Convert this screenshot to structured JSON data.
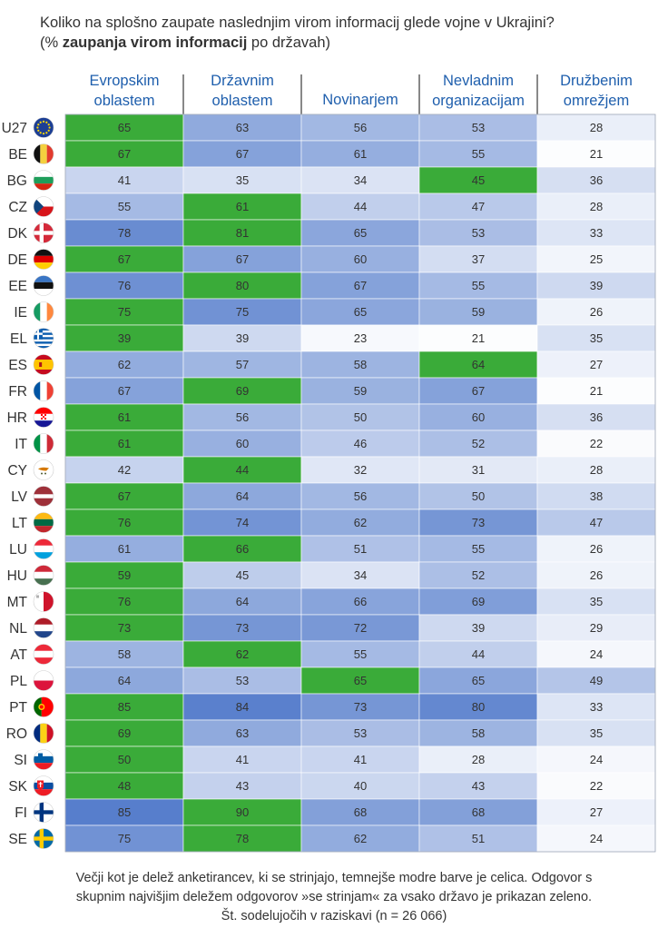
{
  "title": {
    "line1": "Koliko na splošno zaupate naslednjim virom informacij glede vojne v Ukrajini?",
    "line2_prefix": "(% ",
    "line2_bold": "zaupanja virom informacij",
    "line2_suffix": " po državah)"
  },
  "footer": {
    "line1": "Večji kot je delež anketirancev, ki se strinjajo, temnejše modre barve je celica. Odgovor s",
    "line2": "skupnim najvišjim deležem odgovorov »se strinjam« za vsako državo je prikazan zeleno.",
    "line3": "Št. sodelujočih v raziskavi (n = 26 066)"
  },
  "colors": {
    "highest": "#3aab39",
    "scale_light": "#ffffff",
    "scale_dark": "#4a74c8",
    "header_text": "#1f5fad"
  },
  "chart_data": {
    "type": "table",
    "title": "Koliko na splošno zaupate naslednjim virom informacij glede vojne v Ukrajini?",
    "columns": [
      [
        "Evropskim",
        "oblastem"
      ],
      [
        "Državnim",
        "oblastem"
      ],
      [
        "Novinarjem"
      ],
      [
        "Nevladnim",
        "organizacijam"
      ],
      [
        "Družbenim",
        "omrežjem"
      ]
    ],
    "rows": [
      {
        "code": "U27",
        "flag": "eu-flag-icon",
        "values": [
          65,
          63,
          56,
          53,
          28
        ],
        "highest": 0
      },
      {
        "code": "BE",
        "flag": "belgium-flag-icon",
        "values": [
          67,
          67,
          61,
          55,
          21
        ],
        "highest": 0
      },
      {
        "code": "BG",
        "flag": "bulgaria-flag-icon",
        "values": [
          41,
          35,
          34,
          45,
          36
        ],
        "highest": 3
      },
      {
        "code": "CZ",
        "flag": "czechia-flag-icon",
        "values": [
          55,
          61,
          44,
          47,
          28
        ],
        "highest": 1
      },
      {
        "code": "DK",
        "flag": "denmark-flag-icon",
        "values": [
          78,
          81,
          65,
          53,
          33
        ],
        "highest": 1
      },
      {
        "code": "DE",
        "flag": "germany-flag-icon",
        "values": [
          67,
          67,
          60,
          37,
          25
        ],
        "highest": 0
      },
      {
        "code": "EE",
        "flag": "estonia-flag-icon",
        "values": [
          76,
          80,
          67,
          55,
          39
        ],
        "highest": 1
      },
      {
        "code": "IE",
        "flag": "ireland-flag-icon",
        "values": [
          75,
          75,
          65,
          59,
          26
        ],
        "highest": 0
      },
      {
        "code": "EL",
        "flag": "greece-flag-icon",
        "values": [
          39,
          39,
          23,
          21,
          35
        ],
        "highest": 0
      },
      {
        "code": "ES",
        "flag": "spain-flag-icon",
        "values": [
          62,
          57,
          58,
          64,
          27
        ],
        "highest": 3
      },
      {
        "code": "FR",
        "flag": "france-flag-icon",
        "values": [
          67,
          69,
          59,
          67,
          21
        ],
        "highest": 1
      },
      {
        "code": "HR",
        "flag": "croatia-flag-icon",
        "values": [
          61,
          56,
          50,
          60,
          36
        ],
        "highest": 0
      },
      {
        "code": "IT",
        "flag": "italy-flag-icon",
        "values": [
          61,
          60,
          46,
          52,
          22
        ],
        "highest": 0
      },
      {
        "code": "CY",
        "flag": "cyprus-flag-icon",
        "values": [
          42,
          44,
          32,
          31,
          28
        ],
        "highest": 1
      },
      {
        "code": "LV",
        "flag": "latvia-flag-icon",
        "values": [
          67,
          64,
          56,
          50,
          38
        ],
        "highest": 0
      },
      {
        "code": "LT",
        "flag": "lithuania-flag-icon",
        "values": [
          76,
          74,
          62,
          73,
          47
        ],
        "highest": 0
      },
      {
        "code": "LU",
        "flag": "luxembourg-flag-icon",
        "values": [
          61,
          66,
          51,
          55,
          26
        ],
        "highest": 1
      },
      {
        "code": "HU",
        "flag": "hungary-flag-icon",
        "values": [
          59,
          45,
          34,
          52,
          26
        ],
        "highest": 0
      },
      {
        "code": "MT",
        "flag": "malta-flag-icon",
        "values": [
          76,
          64,
          66,
          69,
          35
        ],
        "highest": 0
      },
      {
        "code": "NL",
        "flag": "netherlands-flag-icon",
        "values": [
          73,
          73,
          72,
          39,
          29
        ],
        "highest": 0
      },
      {
        "code": "AT",
        "flag": "austria-flag-icon",
        "values": [
          58,
          62,
          55,
          44,
          24
        ],
        "highest": 1
      },
      {
        "code": "PL",
        "flag": "poland-flag-icon",
        "values": [
          64,
          53,
          65,
          65,
          49
        ],
        "highest": 2
      },
      {
        "code": "PT",
        "flag": "portugal-flag-icon",
        "values": [
          85,
          84,
          73,
          80,
          33
        ],
        "highest": 0
      },
      {
        "code": "RO",
        "flag": "romania-flag-icon",
        "values": [
          69,
          63,
          53,
          58,
          35
        ],
        "highest": 0
      },
      {
        "code": "SI",
        "flag": "slovenia-flag-icon",
        "values": [
          50,
          41,
          41,
          28,
          24
        ],
        "highest": 0
      },
      {
        "code": "SK",
        "flag": "slovakia-flag-icon",
        "values": [
          48,
          43,
          40,
          43,
          22
        ],
        "highest": 0
      },
      {
        "code": "FI",
        "flag": "finland-flag-icon",
        "values": [
          85,
          90,
          68,
          68,
          27
        ],
        "highest": 1
      },
      {
        "code": "SE",
        "flag": "sweden-flag-icon",
        "values": [
          75,
          78,
          62,
          51,
          24
        ],
        "highest": 1
      }
    ]
  }
}
